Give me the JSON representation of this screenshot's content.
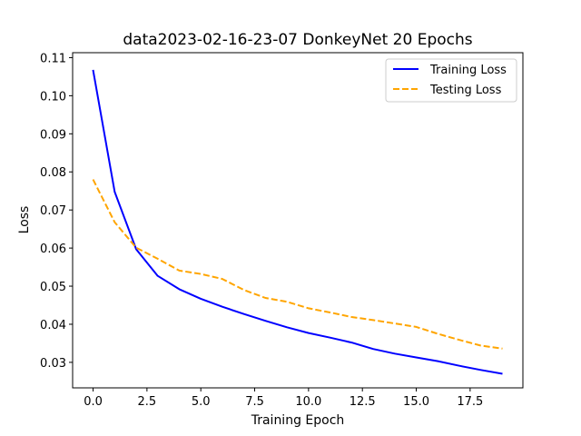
{
  "chart_data": {
    "type": "line",
    "title": "data2023-02-16-23-07 DonkeyNet 20 Epochs",
    "xlabel": "Training Epoch",
    "ylabel": "Loss",
    "xlim": [
      -0.95,
      19.95
    ],
    "ylim": [
      0.0233,
      0.1113
    ],
    "xticks": [
      0.0,
      2.5,
      5.0,
      7.5,
      10.0,
      12.5,
      15.0,
      17.5
    ],
    "xtick_labels": [
      "0.0",
      "2.5",
      "5.0",
      "7.5",
      "10.0",
      "12.5",
      "15.0",
      "17.5"
    ],
    "yticks": [
      0.03,
      0.04,
      0.05,
      0.06,
      0.07,
      0.08,
      0.09,
      0.1,
      0.11
    ],
    "ytick_labels": [
      "0.03",
      "0.04",
      "0.05",
      "0.06",
      "0.07",
      "0.08",
      "0.09",
      "0.10",
      "0.11"
    ],
    "grid": false,
    "legend_position": "top-right",
    "x": [
      0,
      1,
      2,
      3,
      4,
      5,
      6,
      7,
      8,
      9,
      10,
      11,
      12,
      13,
      14,
      15,
      16,
      17,
      18,
      19
    ],
    "series": [
      {
        "name": "Training Loss",
        "color": "#0000ff",
        "dash": "solid",
        "values": [
          0.1068,
          0.0748,
          0.0597,
          0.0527,
          0.0492,
          0.0467,
          0.0446,
          0.0427,
          0.0409,
          0.0392,
          0.0377,
          0.0365,
          0.0352,
          0.0335,
          0.0323,
          0.0313,
          0.0303,
          0.0291,
          0.028,
          0.027
        ]
      },
      {
        "name": "Testing Loss",
        "color": "#ffa500",
        "dash": "dashed",
        "values": [
          0.078,
          0.0668,
          0.0601,
          0.0572,
          0.0541,
          0.0532,
          0.0519,
          0.049,
          0.0469,
          0.0459,
          0.0442,
          0.0431,
          0.0419,
          0.0411,
          0.0402,
          0.0393,
          0.0375,
          0.0359,
          0.0344,
          0.0336
        ]
      }
    ]
  }
}
